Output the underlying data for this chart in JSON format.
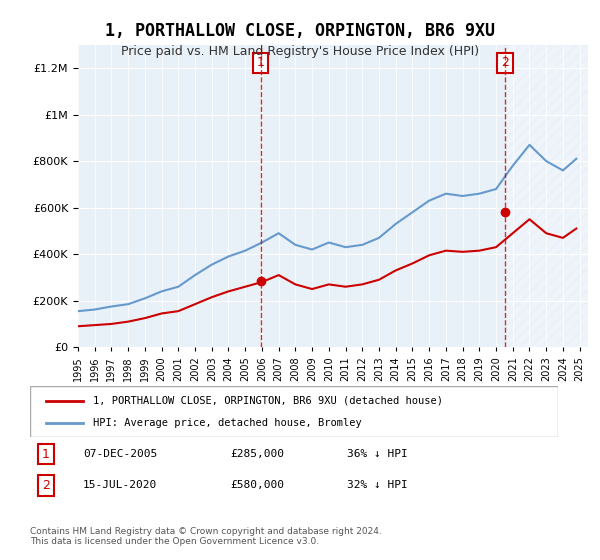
{
  "title": "1, PORTHALLOW CLOSE, ORPINGTON, BR6 9XU",
  "subtitle": "Price paid vs. HM Land Registry's House Price Index (HPI)",
  "ylabel_ticks": [
    "£0",
    "£200K",
    "£400K",
    "£600K",
    "£800K",
    "£1M",
    "£1.2M"
  ],
  "ylim": [
    0,
    1300000
  ],
  "xlim": [
    1995,
    2025.5
  ],
  "sale1_date": 2005.92,
  "sale1_price": 285000,
  "sale2_date": 2020.54,
  "sale2_price": 580000,
  "legend_line1": "1, PORTHALLOW CLOSE, ORPINGTON, BR6 9XU (detached house)",
  "legend_line2": "HPI: Average price, detached house, Bromley",
  "annotation1": "07-DEC-2005    £285,000    36% ↓ HPI",
  "annotation2": "15-JUL-2020    £580,000    32% ↓ HPI",
  "footer": "Contains HM Land Registry data © Crown copyright and database right 2024.\nThis data is licensed under the Open Government Licence v3.0.",
  "bg_color": "#e8f0f8",
  "hatch_color": "#c8d8e8",
  "line_red": "#cc0000",
  "line_blue": "#6699cc",
  "marker_color_red": "#cc0000",
  "marker_color_blue": "#6699cc"
}
